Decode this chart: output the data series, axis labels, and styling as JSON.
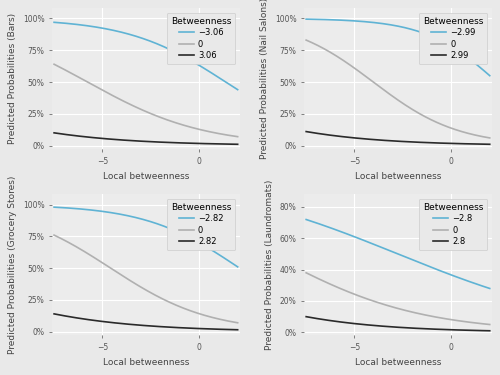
{
  "panels": [
    {
      "ylabel": "Predicted Probabilities (Bars)",
      "xlabel": "Local betweenness",
      "legend_label": "Betweenness",
      "legend_values": [
        "−3.06",
        "0",
        "3.06"
      ],
      "x_range": [
        -7.5,
        2.0
      ],
      "y_ticks": [
        0,
        0.25,
        0.5,
        0.75,
        1.0
      ],
      "ylim": [
        -0.03,
        1.08
      ],
      "curves": [
        {
          "color": "#5fb3d4",
          "lw": 1.2,
          "start_y": 0.97,
          "end_y": 0.44
        },
        {
          "color": "#b0b0b0",
          "lw": 1.2,
          "start_y": 0.64,
          "end_y": 0.07
        },
        {
          "color": "#2a2a2a",
          "lw": 1.2,
          "start_y": 0.1,
          "end_y": 0.01
        }
      ]
    },
    {
      "ylabel": "Predicted Probabilities (Nail Salons)",
      "xlabel": "Local betweenness",
      "legend_label": "Betweenness",
      "legend_values": [
        "−2.99",
        "0",
        "2.99"
      ],
      "x_range": [
        -7.5,
        2.0
      ],
      "y_ticks": [
        0,
        0.25,
        0.5,
        0.75,
        1.0
      ],
      "ylim": [
        -0.03,
        1.08
      ],
      "curves": [
        {
          "color": "#5fb3d4",
          "lw": 1.2,
          "start_y": 0.995,
          "end_y": 0.55
        },
        {
          "color": "#b0b0b0",
          "lw": 1.2,
          "start_y": 0.83,
          "end_y": 0.06
        },
        {
          "color": "#2a2a2a",
          "lw": 1.2,
          "start_y": 0.11,
          "end_y": 0.01
        }
      ]
    },
    {
      "ylabel": "Predicted Probabilities (Grocery Stores)",
      "xlabel": "Local betweenness",
      "legend_label": "Betweenness",
      "legend_values": [
        "−2.82",
        "0",
        "2.82"
      ],
      "x_range": [
        -7.5,
        2.0
      ],
      "y_ticks": [
        0,
        0.25,
        0.5,
        0.75,
        1.0
      ],
      "ylim": [
        -0.03,
        1.08
      ],
      "curves": [
        {
          "color": "#5fb3d4",
          "lw": 1.2,
          "start_y": 0.98,
          "end_y": 0.51
        },
        {
          "color": "#b0b0b0",
          "lw": 1.2,
          "start_y": 0.76,
          "end_y": 0.07
        },
        {
          "color": "#2a2a2a",
          "lw": 1.2,
          "start_y": 0.14,
          "end_y": 0.015
        }
      ]
    },
    {
      "ylabel": "Predicted Probabilities (Laundromats)",
      "xlabel": "Local betweenness",
      "legend_label": "Betweenness",
      "legend_values": [
        "−2.8",
        "0",
        "2.8"
      ],
      "x_range": [
        -7.5,
        2.0
      ],
      "y_ticks": [
        0.0,
        0.2,
        0.4,
        0.6,
        0.8
      ],
      "ylim": [
        -0.02,
        0.88
      ],
      "curves": [
        {
          "color": "#5fb3d4",
          "lw": 1.2,
          "start_y": 0.72,
          "end_y": 0.28
        },
        {
          "color": "#b0b0b0",
          "lw": 1.2,
          "start_y": 0.38,
          "end_y": 0.05
        },
        {
          "color": "#2a2a2a",
          "lw": 1.2,
          "start_y": 0.1,
          "end_y": 0.01
        }
      ]
    }
  ],
  "bg_color": "#e9e9e9",
  "plot_bg_color": "#ececec",
  "grid_color": "#ffffff",
  "tick_labelsize": 5.5,
  "axis_labelsize": 6.5,
  "legend_title_fontsize": 6.5,
  "legend_fontsize": 6.0
}
